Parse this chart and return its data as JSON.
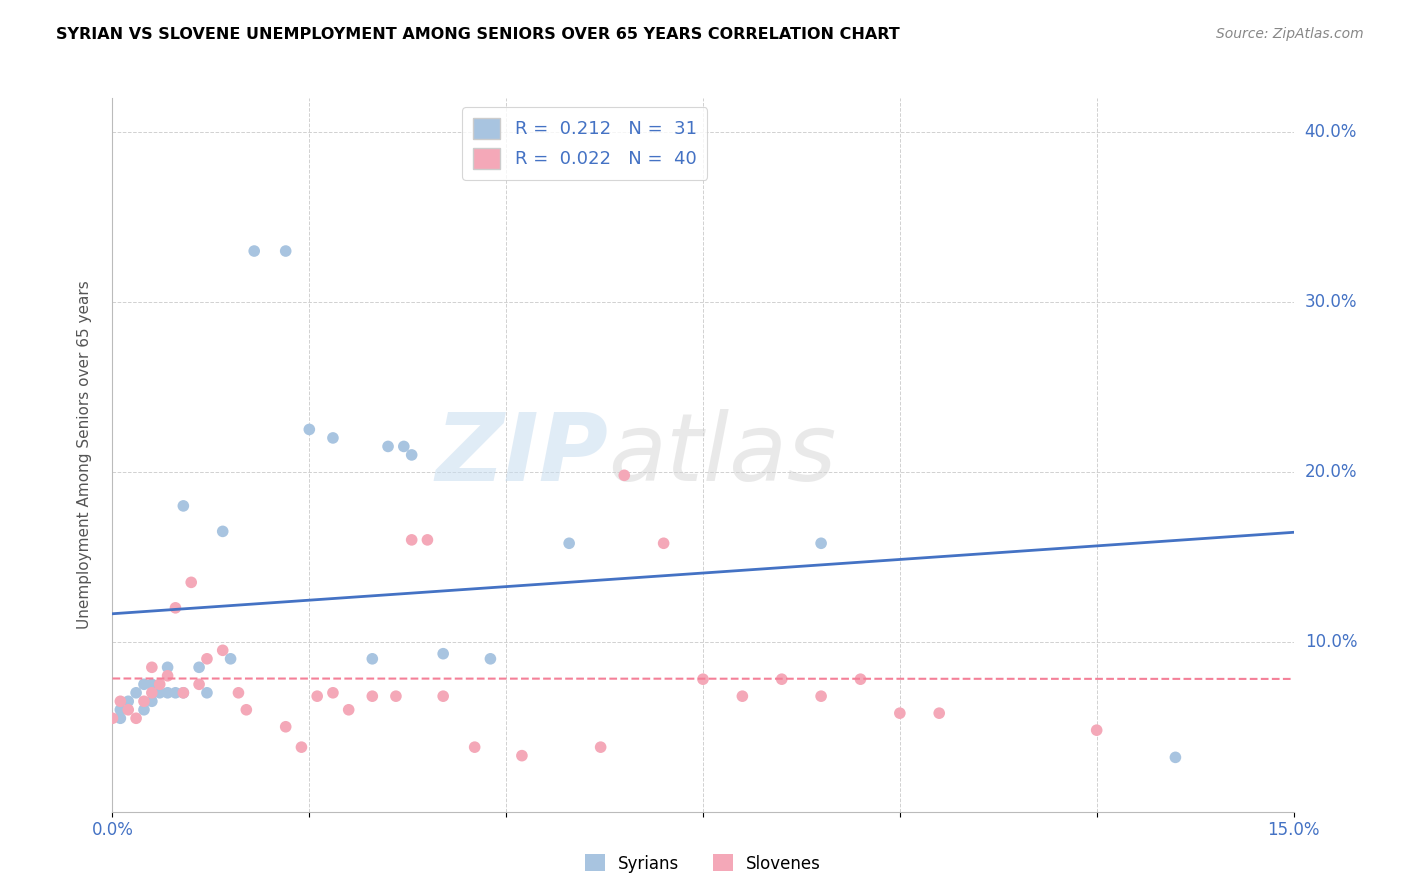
{
  "title": "SYRIAN VS SLOVENE UNEMPLOYMENT AMONG SENIORS OVER 65 YEARS CORRELATION CHART",
  "source": "Source: ZipAtlas.com",
  "ylabel": "Unemployment Among Seniors over 65 years",
  "xlim": [
    0.0,
    0.15
  ],
  "ylim": [
    0.0,
    0.42
  ],
  "syrian_color": "#a8c4e0",
  "slovene_color": "#f4a8b8",
  "syrian_line_color": "#4472c4",
  "slovene_line_color": "#f48098",
  "syrian_R": 0.212,
  "syrian_N": 31,
  "slovene_R": 0.022,
  "slovene_N": 40,
  "legend_label_syrian": "Syrians",
  "legend_label_slovene": "Slovenes",
  "syrians_x": [
    0.001,
    0.001,
    0.002,
    0.003,
    0.004,
    0.004,
    0.005,
    0.005,
    0.006,
    0.007,
    0.007,
    0.008,
    0.009,
    0.009,
    0.011,
    0.012,
    0.014,
    0.015,
    0.018,
    0.022,
    0.025,
    0.028,
    0.033,
    0.035,
    0.037,
    0.038,
    0.042,
    0.048,
    0.058,
    0.09,
    0.135
  ],
  "syrians_y": [
    0.055,
    0.06,
    0.065,
    0.07,
    0.06,
    0.075,
    0.065,
    0.075,
    0.07,
    0.07,
    0.085,
    0.07,
    0.18,
    0.07,
    0.085,
    0.07,
    0.165,
    0.09,
    0.33,
    0.33,
    0.225,
    0.22,
    0.09,
    0.215,
    0.215,
    0.21,
    0.093,
    0.09,
    0.158,
    0.158,
    0.032
  ],
  "slovenes_x": [
    0.0,
    0.001,
    0.002,
    0.003,
    0.004,
    0.005,
    0.005,
    0.006,
    0.007,
    0.008,
    0.009,
    0.01,
    0.011,
    0.012,
    0.014,
    0.016,
    0.017,
    0.022,
    0.024,
    0.026,
    0.028,
    0.03,
    0.033,
    0.036,
    0.038,
    0.04,
    0.042,
    0.046,
    0.052,
    0.062,
    0.065,
    0.07,
    0.075,
    0.08,
    0.085,
    0.09,
    0.095,
    0.1,
    0.105,
    0.125
  ],
  "slovenes_y": [
    0.055,
    0.065,
    0.06,
    0.055,
    0.065,
    0.07,
    0.085,
    0.075,
    0.08,
    0.12,
    0.07,
    0.135,
    0.075,
    0.09,
    0.095,
    0.07,
    0.06,
    0.05,
    0.038,
    0.068,
    0.07,
    0.06,
    0.068,
    0.068,
    0.16,
    0.16,
    0.068,
    0.038,
    0.033,
    0.038,
    0.198,
    0.158,
    0.078,
    0.068,
    0.078,
    0.068,
    0.078,
    0.058,
    0.058,
    0.048
  ],
  "watermark_zip": "ZIP",
  "watermark_atlas": "atlas",
  "background_color": "#ffffff",
  "grid_color": "#cccccc",
  "tick_color": "#4472c4",
  "label_color": "#555555",
  "title_color": "#000000",
  "source_color": "#888888"
}
